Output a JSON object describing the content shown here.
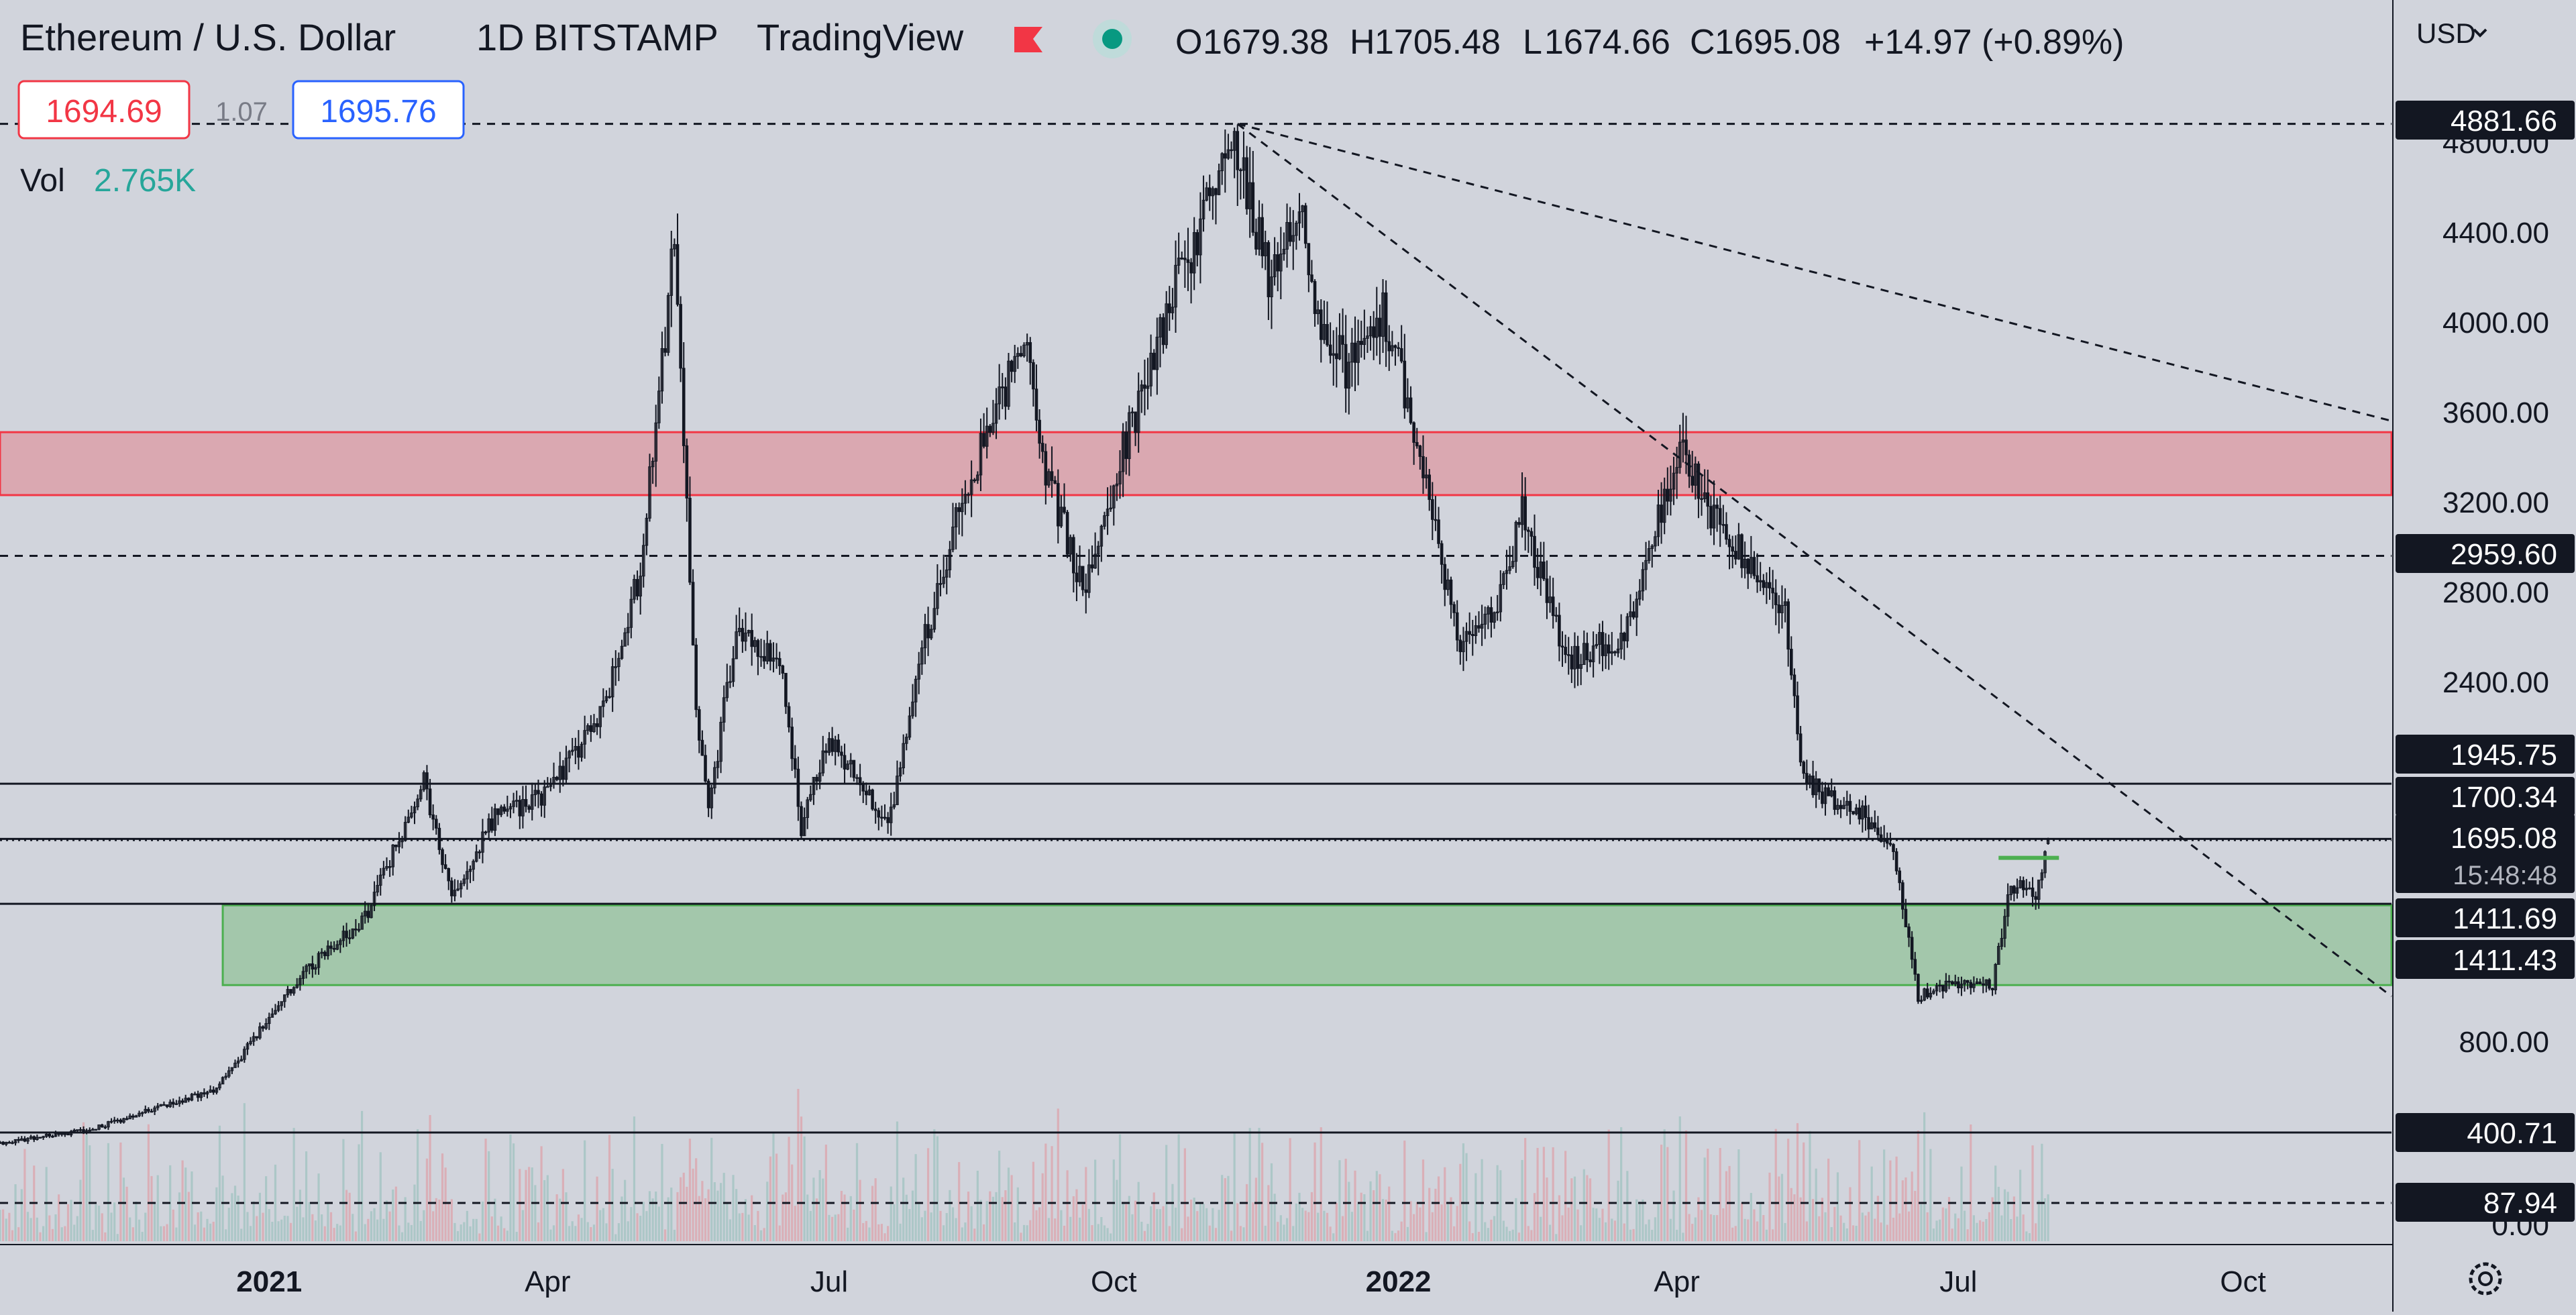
{
  "header": {
    "symbol": "Ethereum / U.S. Dollar",
    "interval": "1D",
    "exchange": "BITSTAMP",
    "source": "TradingView",
    "ohlc": [
      {
        "key": "O",
        "value": "1679.38"
      },
      {
        "key": "H",
        "value": "1705.48"
      },
      {
        "key": "L",
        "value": "1674.66"
      },
      {
        "key": "C",
        "value": "1695.08"
      }
    ],
    "change": "+14.97 (+0.89%)",
    "colors": {
      "flag": "#f23645",
      "live_dot": "#089981",
      "live_ring": "#b2dfd8"
    }
  },
  "order_panel": {
    "sell": "1694.69",
    "spread": "1.07",
    "buy": "1695.76"
  },
  "volume_legend": {
    "label": "Vol",
    "value": "2.765K"
  },
  "currency_menu": {
    "label": "USD"
  },
  "settings": {
    "icon": "gear-icon"
  },
  "colors": {
    "background": "#d1d4dc",
    "text": "#131722",
    "up_volume": "#9fc3c0",
    "down_volume": "#dca3ab",
    "resistance_zone": "#f23645",
    "support_zone": "#4caf50",
    "sell_border": "#f23645",
    "buy_border": "#2962ff",
    "volume_value": "#26a69a"
  },
  "chart_data": {
    "type": "candlestick",
    "title": "Ethereum / U.S. Dollar",
    "interval": "1D",
    "x_axis": {
      "range": [
        "2020-10-06",
        "2022-11-18"
      ],
      "tick_labels": [
        {
          "label": "2021",
          "date": "2021-01-01",
          "bold": true
        },
        {
          "label": "Apr",
          "date": "2021-04-01",
          "bold": false
        },
        {
          "label": "Jul",
          "date": "2021-07-01",
          "bold": false
        },
        {
          "label": "Oct",
          "date": "2021-10-01",
          "bold": false
        },
        {
          "label": "2022",
          "date": "2022-01-01",
          "bold": true
        },
        {
          "label": "Apr",
          "date": "2022-04-01",
          "bold": false
        },
        {
          "label": "Jul",
          "date": "2022-07-01",
          "bold": false
        },
        {
          "label": "Oct",
          "date": "2022-10-01",
          "bold": false
        }
      ]
    },
    "y_axis": {
      "scale": "linear",
      "ylim": [
        320,
        5000
      ],
      "tick_labels": [
        "4800.00",
        "4400.00",
        "4000.00",
        "3600.00",
        "3200.00",
        "2800.00",
        "2400.00",
        "800.00",
        "0.00"
      ]
    },
    "price_path": [
      {
        "date": "2020-10-06",
        "close": 345
      },
      {
        "date": "2020-11-05",
        "close": 410
      },
      {
        "date": "2020-12-15",
        "close": 590
      },
      {
        "date": "2021-01-12",
        "close": 1100
      },
      {
        "date": "2021-02-01",
        "close": 1350
      },
      {
        "date": "2021-02-20",
        "close": 1950
      },
      {
        "date": "2021-03-01",
        "close": 1450
      },
      {
        "date": "2021-03-15",
        "close": 1800
      },
      {
        "date": "2021-04-01",
        "close": 1900
      },
      {
        "date": "2021-04-20",
        "close": 2300
      },
      {
        "date": "2021-05-01",
        "close": 2900
      },
      {
        "date": "2021-05-12",
        "close": 4360
      },
      {
        "date": "2021-05-19",
        "close": 2300
      },
      {
        "date": "2021-05-23",
        "close": 1800
      },
      {
        "date": "2021-06-01",
        "close": 2650
      },
      {
        "date": "2021-06-15",
        "close": 2500
      },
      {
        "date": "2021-06-22",
        "close": 1750
      },
      {
        "date": "2021-07-01",
        "close": 2150
      },
      {
        "date": "2021-07-20",
        "close": 1750
      },
      {
        "date": "2021-08-01",
        "close": 2600
      },
      {
        "date": "2021-08-15",
        "close": 3300
      },
      {
        "date": "2021-09-03",
        "close": 3950
      },
      {
        "date": "2021-09-07",
        "close": 3450
      },
      {
        "date": "2021-09-21",
        "close": 2800
      },
      {
        "date": "2021-10-01",
        "close": 3300
      },
      {
        "date": "2021-10-21",
        "close": 4150
      },
      {
        "date": "2021-11-09",
        "close": 4800
      },
      {
        "date": "2021-11-20",
        "close": 4200
      },
      {
        "date": "2021-12-01",
        "close": 4600
      },
      {
        "date": "2021-12-04",
        "close": 4100
      },
      {
        "date": "2021-12-15",
        "close": 3800
      },
      {
        "date": "2021-12-27",
        "close": 4050
      },
      {
        "date": "2022-01-05",
        "close": 3600
      },
      {
        "date": "2022-01-21",
        "close": 2550
      },
      {
        "date": "2022-02-01",
        "close": 2700
      },
      {
        "date": "2022-02-10",
        "close": 3150
      },
      {
        "date": "2022-02-24",
        "close": 2500
      },
      {
        "date": "2022-03-15",
        "close": 2600
      },
      {
        "date": "2022-04-02",
        "close": 3480
      },
      {
        "date": "2022-04-10",
        "close": 3200
      },
      {
        "date": "2022-04-30",
        "close": 2800
      },
      {
        "date": "2022-05-06",
        "close": 2700
      },
      {
        "date": "2022-05-12",
        "close": 1950
      },
      {
        "date": "2022-06-01",
        "close": 1800
      },
      {
        "date": "2022-06-10",
        "close": 1650
      },
      {
        "date": "2022-06-18",
        "close": 1000
      },
      {
        "date": "2022-07-01",
        "close": 1060
      },
      {
        "date": "2022-07-12",
        "close": 1050
      },
      {
        "date": "2022-07-18",
        "close": 1500
      },
      {
        "date": "2022-07-26",
        "close": 1450
      },
      {
        "date": "2022-07-30",
        "close": 1695
      }
    ],
    "last_candle": {
      "date": "2022-07-30",
      "open": 1679.38,
      "high": 1705.48,
      "low": 1674.66,
      "close": 1695.08
    },
    "horizontal_lines": [
      {
        "price": 4881.66,
        "label": "4881.66",
        "style": "dashed"
      },
      {
        "price": 2959.6,
        "label": "2959.60",
        "style": "dashed"
      },
      {
        "price": 1945.75,
        "label": "1945.75",
        "style": "solid"
      },
      {
        "price": 1700.34,
        "label": "1700.34",
        "style": "solid"
      },
      {
        "price": 1411.69,
        "label": "1411.69",
        "style": "solid"
      },
      {
        "price": 1411.43,
        "label": "1411.43",
        "style": "none"
      },
      {
        "price": 400.71,
        "label": "400.71",
        "style": "solid"
      },
      {
        "price": 87.94,
        "label": "87.94",
        "style": "dashed"
      }
    ],
    "current_price": {
      "price": 1695.08,
      "label": "1695.08",
      "countdown": "15:48:48"
    },
    "zones": [
      {
        "name": "resistance",
        "from_date": "2020-10-06",
        "to_date": "2022-11-18",
        "price_low": 3230,
        "price_high": 3510
      },
      {
        "name": "support",
        "from_date": "2020-12-17",
        "to_date": "2022-11-18",
        "price_low": 1050,
        "price_high": 1405
      }
    ],
    "trendlines": [
      {
        "start": {
          "date": "2021-11-10",
          "price": 4881.66
        },
        "end": {
          "date": "2022-11-18",
          "price": 3560
        },
        "style": "dashed"
      },
      {
        "start": {
          "date": "2021-11-10",
          "price": 4881.66
        },
        "end": {
          "date": "2022-11-18",
          "price": 1000
        },
        "style": "dashed"
      }
    ],
    "marker": {
      "date": "2022-07-27",
      "price": 1625,
      "color": "#4caf50"
    },
    "volume": {
      "label": "Vol",
      "last_value": "2.765K"
    },
    "grid": false
  }
}
